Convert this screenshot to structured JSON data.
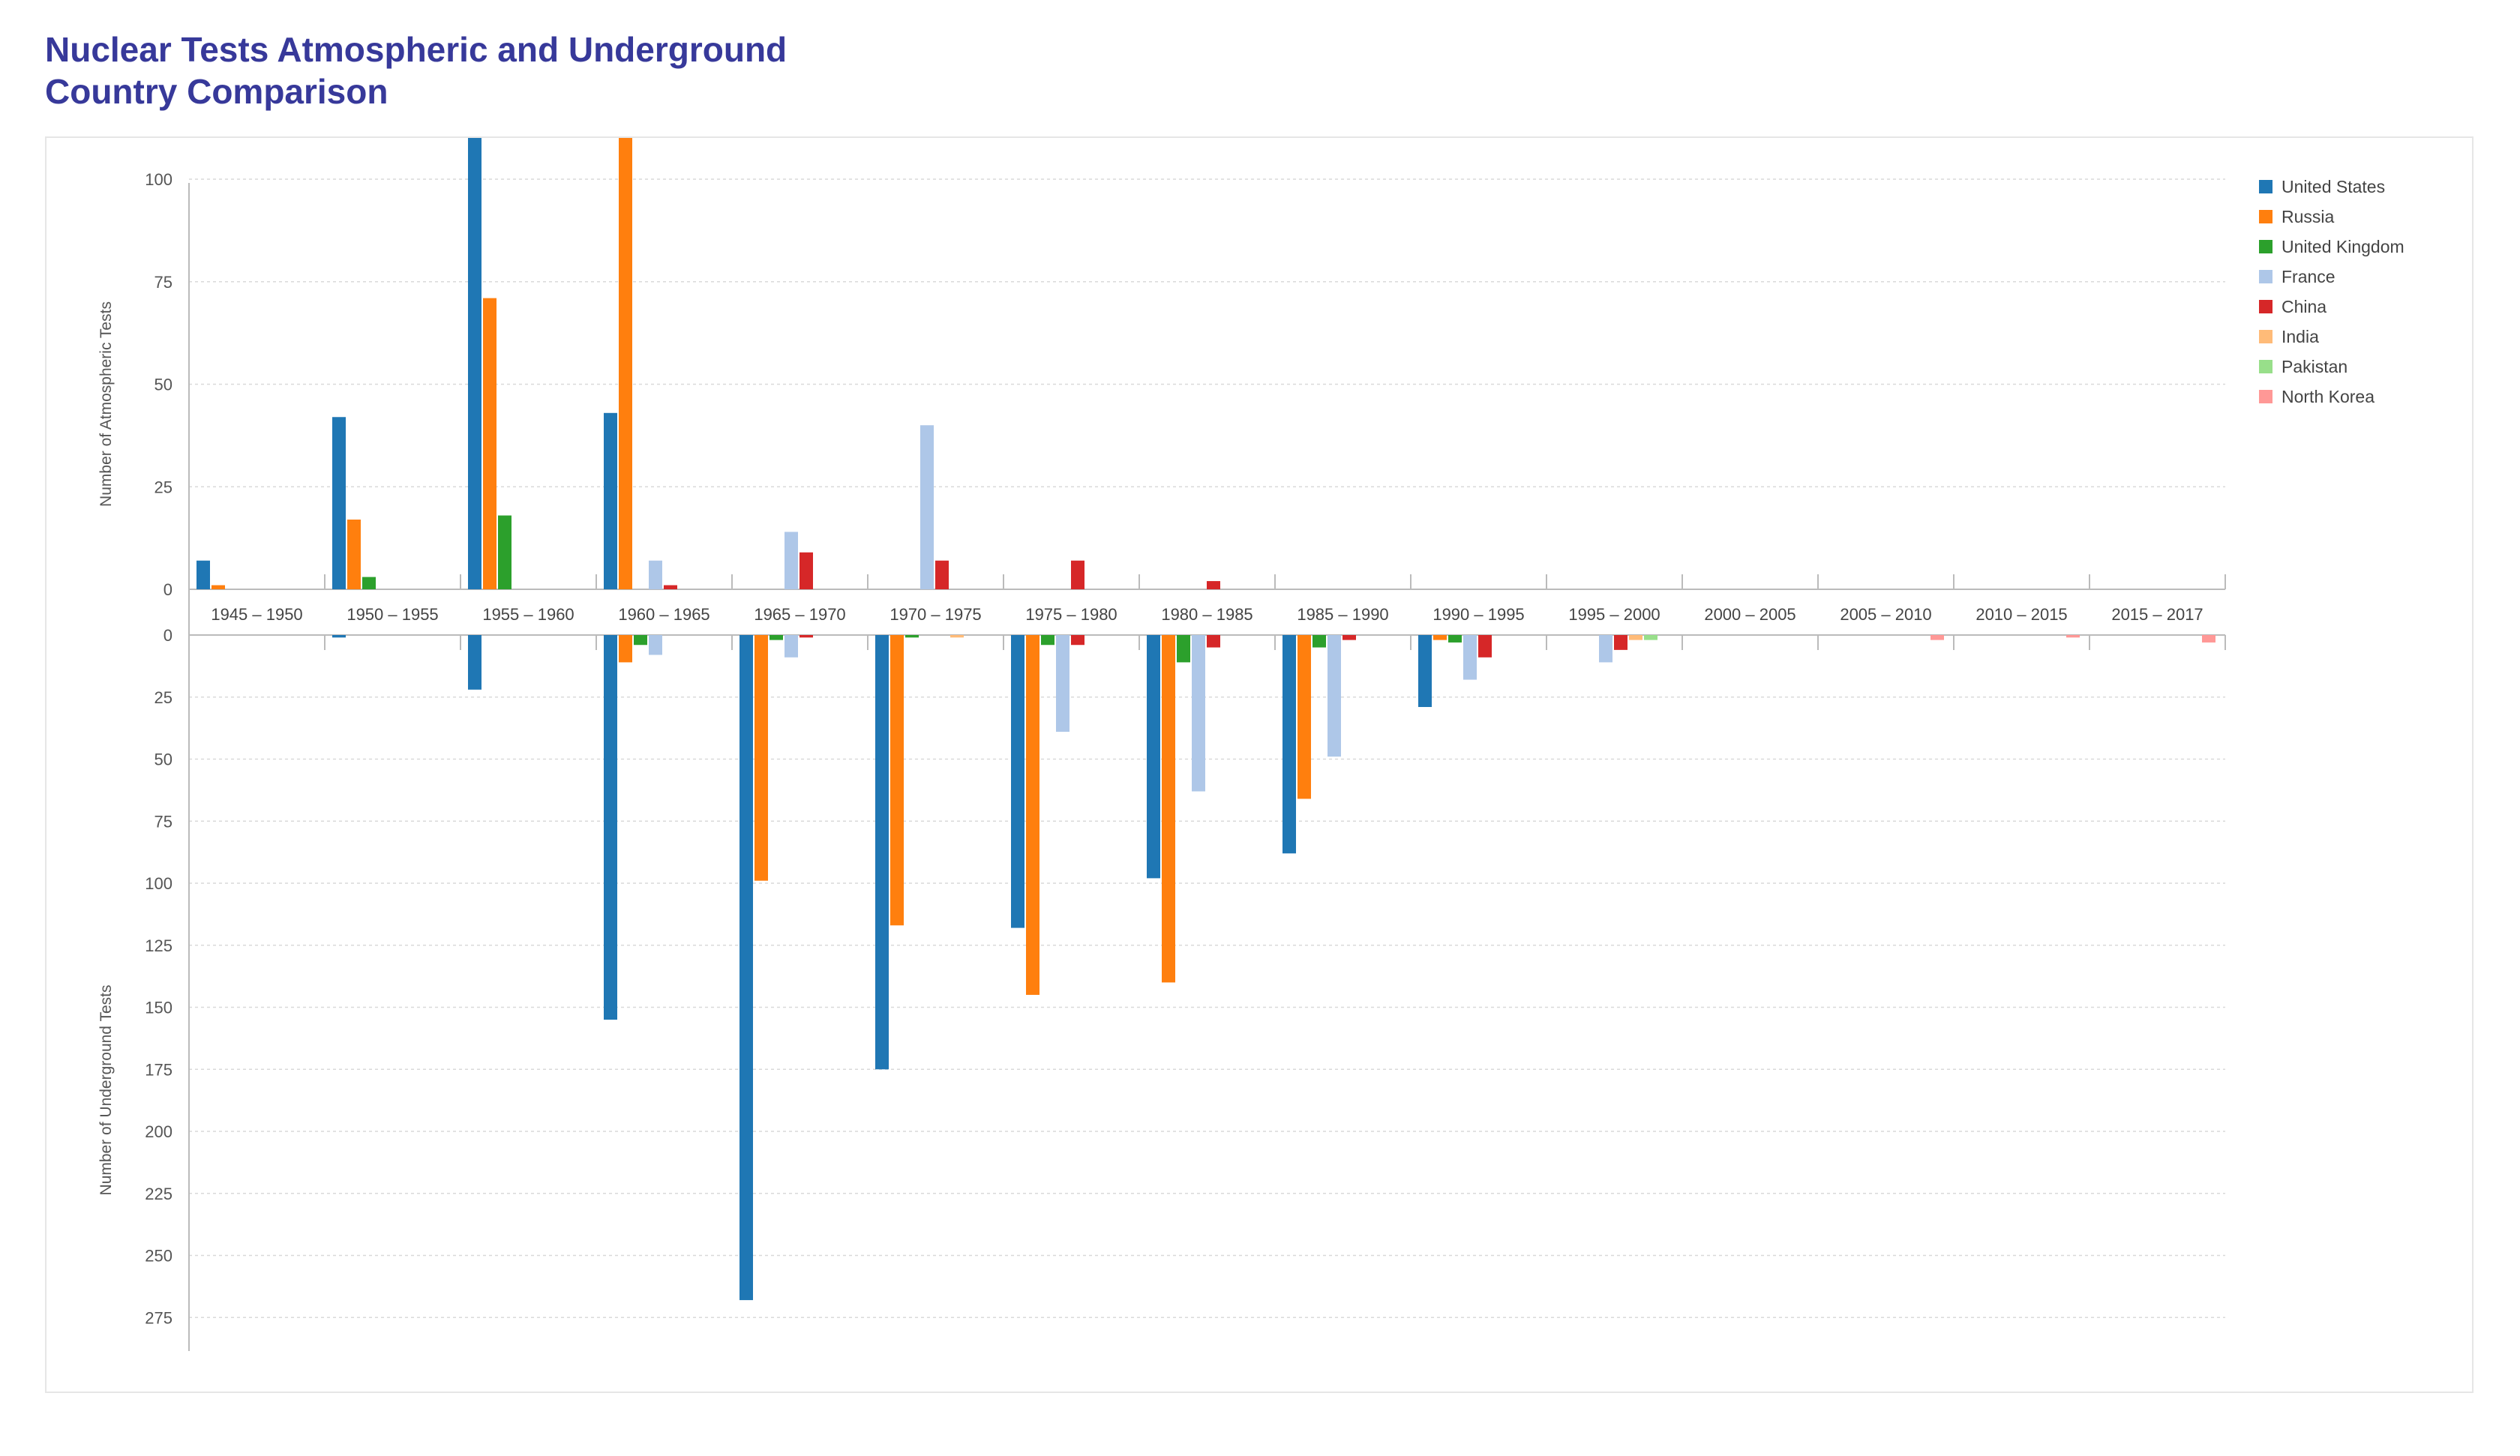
{
  "title": {
    "line1": "Nuclear Tests Atmospheric and Underground",
    "line2": "Country Comparison"
  },
  "chart_data": {
    "type": "bar",
    "title": "Nuclear Tests Atmospheric and Underground Country Comparison",
    "categories": [
      "1945 – 1950",
      "1950 – 1955",
      "1955 – 1960",
      "1960 – 1965",
      "1965 – 1970",
      "1970 – 1975",
      "1975 – 1980",
      "1980 – 1985",
      "1985 – 1990",
      "1990 – 1995",
      "1995 – 2000",
      "2000 – 2005",
      "2005 – 2010",
      "2010 – 2015",
      "2015 – 2017"
    ],
    "legend_position": "top-right",
    "grid": true,
    "atmospheric": {
      "ylabel": "Number of Atmospheric Tests",
      "ylim": [
        0,
        165
      ],
      "ticks": [
        0,
        25,
        50,
        75,
        100,
        125,
        150
      ],
      "series": [
        {
          "name": "United States",
          "color": "#1f77b4",
          "values": [
            7,
            42,
            141,
            43,
            0,
            0,
            0,
            0,
            0,
            0,
            0,
            0,
            0,
            0,
            0
          ]
        },
        {
          "name": "Russia",
          "color": "#ff7f0e",
          "values": [
            1,
            17,
            71,
            136,
            0,
            0,
            0,
            0,
            0,
            0,
            0,
            0,
            0,
            0,
            0
          ]
        },
        {
          "name": "United Kingdom",
          "color": "#2ca02c",
          "values": [
            0,
            3,
            18,
            0,
            0,
            0,
            0,
            0,
            0,
            0,
            0,
            0,
            0,
            0,
            0
          ]
        },
        {
          "name": "France",
          "color": "#aec7e8",
          "values": [
            0,
            0,
            0,
            7,
            14,
            40,
            0,
            0,
            0,
            0,
            0,
            0,
            0,
            0,
            0
          ]
        },
        {
          "name": "China",
          "color": "#d62728",
          "values": [
            0,
            0,
            0,
            1,
            9,
            7,
            7,
            2,
            0,
            0,
            0,
            0,
            0,
            0,
            0
          ]
        },
        {
          "name": "India",
          "color": "#ffbb78",
          "values": [
            0,
            0,
            0,
            0,
            0,
            0,
            0,
            0,
            0,
            0,
            0,
            0,
            0,
            0,
            0
          ]
        },
        {
          "name": "Pakistan",
          "color": "#98df8a",
          "values": [
            0,
            0,
            0,
            0,
            0,
            0,
            0,
            0,
            0,
            0,
            0,
            0,
            0,
            0,
            0
          ]
        },
        {
          "name": "North Korea",
          "color": "#ff9896",
          "values": [
            0,
            0,
            0,
            0,
            0,
            0,
            0,
            0,
            0,
            0,
            0,
            0,
            0,
            0,
            0
          ]
        }
      ]
    },
    "underground": {
      "ylabel": "Number of Underground Tests",
      "ylim": [
        0,
        290
      ],
      "ticks": [
        0,
        25,
        50,
        75,
        100,
        125,
        150,
        175,
        200,
        225,
        250,
        275
      ],
      "series": [
        {
          "name": "United States",
          "color": "#1f77b4",
          "values": [
            0,
            1,
            22,
            155,
            268,
            175,
            118,
            98,
            88,
            29,
            0,
            0,
            0,
            0,
            0
          ]
        },
        {
          "name": "Russia",
          "color": "#ff7f0e",
          "values": [
            0,
            0,
            0,
            11,
            99,
            117,
            145,
            140,
            66,
            2,
            0,
            0,
            0,
            0,
            0
          ]
        },
        {
          "name": "United Kingdom",
          "color": "#2ca02c",
          "values": [
            0,
            0,
            0,
            4,
            2,
            1,
            4,
            11,
            5,
            3,
            0,
            0,
            0,
            0,
            0
          ]
        },
        {
          "name": "France",
          "color": "#aec7e8",
          "values": [
            0,
            0,
            0,
            8,
            9,
            0,
            39,
            63,
            49,
            18,
            11,
            0,
            0,
            0,
            0
          ]
        },
        {
          "name": "China",
          "color": "#d62728",
          "values": [
            0,
            0,
            0,
            0,
            1,
            0,
            4,
            5,
            2,
            9,
            6,
            0,
            0,
            0,
            0
          ]
        },
        {
          "name": "India",
          "color": "#ffbb78",
          "values": [
            0,
            0,
            0,
            0,
            0,
            1,
            0,
            0,
            0,
            0,
            2,
            0,
            0,
            0,
            0
          ]
        },
        {
          "name": "Pakistan",
          "color": "#98df8a",
          "values": [
            0,
            0,
            0,
            0,
            0,
            0,
            0,
            0,
            0,
            0,
            2,
            0,
            0,
            0,
            0
          ]
        },
        {
          "name": "North Korea",
          "color": "#ff9896",
          "values": [
            0,
            0,
            0,
            0,
            0,
            0,
            0,
            0,
            0,
            0,
            0,
            0,
            2,
            1,
            3
          ]
        }
      ]
    }
  }
}
